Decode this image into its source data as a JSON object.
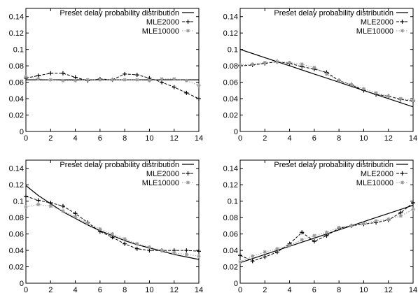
{
  "chart_data": [
    {
      "type": "line",
      "x": [
        0,
        1,
        2,
        3,
        4,
        5,
        6,
        7,
        8,
        9,
        10,
        11,
        12,
        13,
        14
      ],
      "xticks": [
        0,
        2,
        4,
        6,
        8,
        10,
        12,
        14
      ],
      "yticks": [
        0,
        0.02,
        0.04,
        0.06,
        0.08,
        0.1,
        0.12,
        0.14
      ],
      "ytick_labels": [
        "0",
        "0.02",
        "0.04",
        "0.06",
        "0.08",
        "0.1",
        "0.12",
        "0.14"
      ],
      "xlim": [
        0,
        14
      ],
      "ylim": [
        0,
        0.15
      ],
      "grid": false,
      "legend_position": "top-right",
      "series": [
        {
          "name": "Preset delay probability distribution",
          "style": "solid",
          "color": "#000000",
          "values": [
            0.063,
            0.063,
            0.063,
            0.063,
            0.063,
            0.063,
            0.063,
            0.063,
            0.063,
            0.063,
            0.063,
            0.063,
            0.063,
            0.063,
            0.063
          ]
        },
        {
          "name": "MLE2000",
          "style": "dashed-plus",
          "color": "#000000",
          "values": [
            0.065,
            0.068,
            0.071,
            0.071,
            0.066,
            0.062,
            0.064,
            0.063,
            0.07,
            0.069,
            0.065,
            0.06,
            0.054,
            0.047,
            0.04
          ]
        },
        {
          "name": "MLE10000",
          "style": "dotted-star",
          "color": "#9a9a9a",
          "values": [
            0.067,
            0.064,
            0.063,
            0.062,
            0.062,
            0.063,
            0.063,
            0.063,
            0.063,
            0.063,
            0.062,
            0.064,
            0.064,
            0.062,
            0.056
          ]
        }
      ]
    },
    {
      "type": "line",
      "x": [
        0,
        1,
        2,
        3,
        4,
        5,
        6,
        7,
        8,
        9,
        10,
        11,
        12,
        13,
        14
      ],
      "xticks": [
        0,
        2,
        4,
        6,
        8,
        10,
        12,
        14
      ],
      "yticks": [
        0,
        0.02,
        0.04,
        0.06,
        0.08,
        0.1,
        0.12,
        0.14
      ],
      "ytick_labels": [
        "0",
        "0.02",
        "0.04",
        "0.06",
        "0.08",
        "0.1",
        "0.12",
        "0.14"
      ],
      "xlim": [
        0,
        14
      ],
      "ylim": [
        0,
        0.15
      ],
      "grid": false,
      "legend_position": "top-right",
      "series": [
        {
          "name": "Preset delay probability distribution",
          "style": "solid",
          "color": "#000000",
          "values": [
            0.1,
            0.095,
            0.09,
            0.085,
            0.08,
            0.075,
            0.07,
            0.065,
            0.06,
            0.055,
            0.05,
            0.045,
            0.04,
            0.035,
            0.03
          ]
        },
        {
          "name": "MLE2000",
          "style": "dashed-plus",
          "color": "#000000",
          "values": [
            0.08,
            0.081,
            0.083,
            0.085,
            0.083,
            0.079,
            0.076,
            0.072,
            0.062,
            0.057,
            0.05,
            0.045,
            0.043,
            0.039,
            0.037
          ]
        },
        {
          "name": "MLE10000",
          "style": "dotted-star",
          "color": "#9a9a9a",
          "values": [
            0.081,
            0.082,
            0.084,
            0.085,
            0.084,
            0.082,
            0.078,
            0.07,
            0.062,
            0.057,
            0.052,
            0.047,
            0.043,
            0.04,
            0.038
          ]
        }
      ]
    },
    {
      "type": "line",
      "x": [
        0,
        1,
        2,
        3,
        4,
        5,
        6,
        7,
        8,
        9,
        10,
        11,
        12,
        13,
        14
      ],
      "xticks": [
        0,
        2,
        4,
        6,
        8,
        10,
        12,
        14
      ],
      "yticks": [
        0,
        0.02,
        0.04,
        0.06,
        0.08,
        0.1,
        0.12,
        0.14
      ],
      "ytick_labels": [
        "0",
        "0.02",
        "0.04",
        "0.06",
        "0.08",
        "0.1",
        "0.12",
        "0.14"
      ],
      "xlim": [
        0,
        14
      ],
      "ylim": [
        0,
        0.15
      ],
      "grid": false,
      "legend_position": "top-right",
      "series": [
        {
          "name": "Preset delay probability distribution",
          "style": "solid",
          "color": "#000000",
          "values": [
            0.119,
            0.107,
            0.097,
            0.087,
            0.079,
            0.071,
            0.064,
            0.058,
            0.052,
            0.047,
            0.043,
            0.039,
            0.035,
            0.032,
            0.029
          ]
        },
        {
          "name": "MLE2000",
          "style": "dashed-plus",
          "color": "#000000",
          "values": [
            0.106,
            0.101,
            0.098,
            0.094,
            0.085,
            0.074,
            0.063,
            0.056,
            0.048,
            0.042,
            0.04,
            0.04,
            0.04,
            0.04,
            0.039
          ]
        },
        {
          "name": "MLE10000",
          "style": "dotted-star",
          "color": "#9a9a9a",
          "values": [
            0.093,
            0.096,
            0.094,
            0.088,
            0.081,
            0.073,
            0.066,
            0.06,
            0.054,
            0.048,
            0.044,
            0.04,
            0.037,
            0.035,
            0.033
          ]
        }
      ]
    },
    {
      "type": "line",
      "x": [
        0,
        1,
        2,
        3,
        4,
        5,
        6,
        7,
        8,
        9,
        10,
        11,
        12,
        13,
        14
      ],
      "xticks": [
        0,
        2,
        4,
        6,
        8,
        10,
        12,
        14
      ],
      "yticks": [
        0,
        0.02,
        0.04,
        0.06,
        0.08,
        0.1,
        0.12,
        0.14
      ],
      "ytick_labels": [
        "0",
        "0.02",
        "0.04",
        "0.06",
        "0.08",
        "0.1",
        "0.12",
        "0.14"
      ],
      "xlim": [
        0,
        14
      ],
      "ylim": [
        0,
        0.15
      ],
      "grid": false,
      "legend_position": "top-right",
      "series": [
        {
          "name": "Preset delay probability distribution",
          "style": "solid",
          "color": "#000000",
          "values": [
            0.025,
            0.03,
            0.035,
            0.04,
            0.045,
            0.05,
            0.055,
            0.06,
            0.065,
            0.07,
            0.075,
            0.08,
            0.085,
            0.09,
            0.095
          ]
        },
        {
          "name": "MLE2000",
          "style": "dashed-plus",
          "color": "#000000",
          "values": [
            0.034,
            0.027,
            0.032,
            0.038,
            0.048,
            0.062,
            0.051,
            0.058,
            0.067,
            0.07,
            0.072,
            0.074,
            0.077,
            0.086,
            0.098
          ]
        },
        {
          "name": "MLE10000",
          "style": "dotted-star",
          "color": "#9a9a9a",
          "values": [
            0.026,
            0.033,
            0.038,
            0.042,
            0.046,
            0.053,
            0.058,
            0.062,
            0.068,
            0.07,
            0.073,
            0.076,
            0.078,
            0.082,
            0.09
          ]
        }
      ]
    }
  ]
}
